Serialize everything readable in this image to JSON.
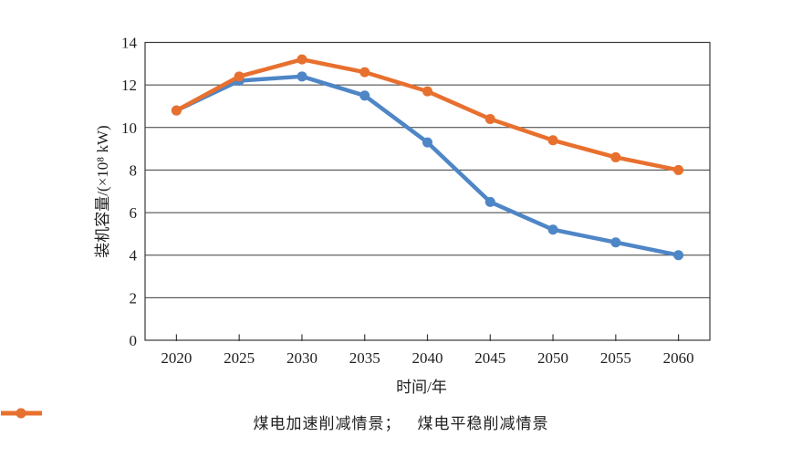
{
  "chart_data": {
    "type": "line",
    "categories": [
      "2020",
      "2025",
      "2030",
      "2035",
      "2040",
      "2045",
      "2050",
      "2055",
      "2060"
    ],
    "series": [
      {
        "name": "煤电加速削减情景",
        "legend_label": "煤电加速削减情景；",
        "color": "#4e86c6",
        "marker": "circle",
        "values": [
          10.8,
          12.2,
          12.4,
          11.5,
          9.3,
          6.5,
          5.2,
          4.6,
          4.0
        ]
      },
      {
        "name": "煤电平稳削减情景",
        "legend_label": "煤电平稳削减情景",
        "color": "#e8702e",
        "marker": "circle",
        "values": [
          10.8,
          12.4,
          13.2,
          12.6,
          11.7,
          10.4,
          9.4,
          8.6,
          8.0
        ]
      }
    ],
    "xlabel": "时间/年",
    "ylabel": "装机容量/(×10⁸ kW)",
    "ylim": [
      0,
      14
    ],
    "yticks": [
      0,
      2,
      4,
      6,
      8,
      10,
      12,
      14
    ],
    "grid": "horizontal",
    "legend_position": "bottom",
    "axis_color": "#3a3a3a",
    "text_color": "#1f1f1f",
    "background": "#ffffff"
  }
}
